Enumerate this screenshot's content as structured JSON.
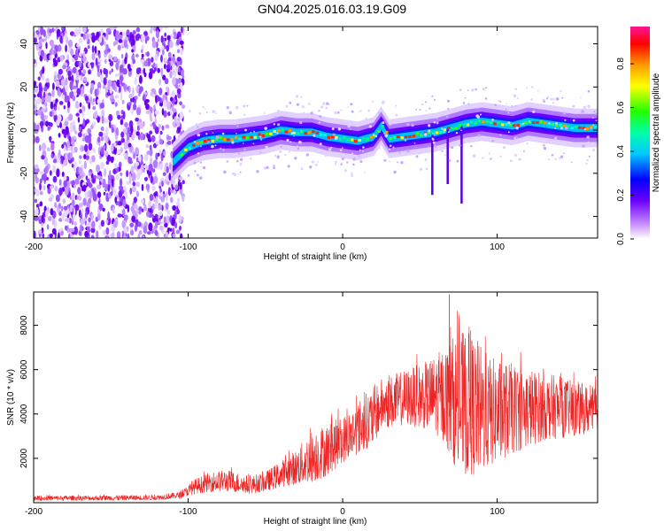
{
  "figure": {
    "title": "GN04.2025.016.03.19.G09"
  },
  "chart_data": [
    {
      "type": "heatmap",
      "title": "",
      "xlabel": "Height of straight line (km)",
      "ylabel": "Frequency (Hz)",
      "xlim": [
        -200,
        165
      ],
      "ylim": [
        -50,
        48
      ],
      "xticks": [
        -200,
        -100,
        0,
        100
      ],
      "yticks": [
        -40,
        -20,
        0,
        20,
        40
      ],
      "colorbar": {
        "label": "Normalized spectral amplitude",
        "range": [
          0,
          0.97
        ],
        "ticks": [
          0.0,
          0.2,
          0.4,
          0.6,
          0.8
        ],
        "colormap": [
          "#ffffff",
          "#8a2be2",
          "#0000ff",
          "#00ffff",
          "#00ff00",
          "#ffff00",
          "#ff8c00",
          "#ff0000",
          "#ff1493"
        ]
      },
      "noise_region_x": [
        -200,
        -103
      ],
      "ridge": {
        "x": [
          -110,
          -100,
          -90,
          -80,
          -70,
          -60,
          -50,
          -40,
          -30,
          -20,
          -10,
          0,
          10,
          20,
          25,
          30,
          40,
          50,
          60,
          70,
          80,
          90,
          100,
          110,
          120,
          130,
          140,
          150,
          160,
          165
        ],
        "y": [
          -15,
          -8,
          -5,
          -4,
          -4,
          -3,
          -2,
          0,
          -1,
          -1,
          -3,
          -4,
          -5,
          -3,
          2,
          -4,
          -3,
          -2,
          -1,
          1,
          3,
          4,
          3,
          2,
          4,
          3,
          2,
          1,
          1,
          1
        ]
      },
      "dips": [
        {
          "x": 58,
          "y": -30
        },
        {
          "x": 68,
          "y": -25
        },
        {
          "x": 77,
          "y": -34
        }
      ]
    },
    {
      "type": "line",
      "title": "",
      "xlabel": "Height of straight line (km)",
      "ylabel": "SNR (10 * v/v)",
      "xlim": [
        -200,
        165
      ],
      "ylim": [
        0,
        9500
      ],
      "xticks": [
        -200,
        -100,
        0,
        100
      ],
      "yticks": [
        2000,
        4000,
        6000,
        8000
      ],
      "color": "#ee2222",
      "envelope": {
        "x": [
          -200,
          -160,
          -120,
          -105,
          -95,
          -85,
          -75,
          -60,
          -50,
          -40,
          -30,
          -20,
          -10,
          0,
          10,
          20,
          25,
          40,
          55,
          65,
          75,
          85,
          95,
          110,
          130,
          150,
          165
        ],
        "low": [
          100,
          100,
          120,
          200,
          400,
          500,
          500,
          400,
          500,
          700,
          800,
          900,
          1200,
          1800,
          2200,
          2600,
          3300,
          3500,
          3300,
          2800,
          1300,
          1200,
          1600,
          2200,
          2800,
          3000,
          3200
        ],
        "high": [
          320,
          330,
          360,
          500,
          1100,
          1400,
          1500,
          1200,
          1400,
          1900,
          2400,
          3300,
          3600,
          3900,
          4600,
          5300,
          5600,
          6000,
          6400,
          7000,
          7800,
          7600,
          6600,
          6300,
          5900,
          5500,
          5200
        ]
      },
      "peak": {
        "x": 69,
        "y": 9400
      }
    }
  ]
}
